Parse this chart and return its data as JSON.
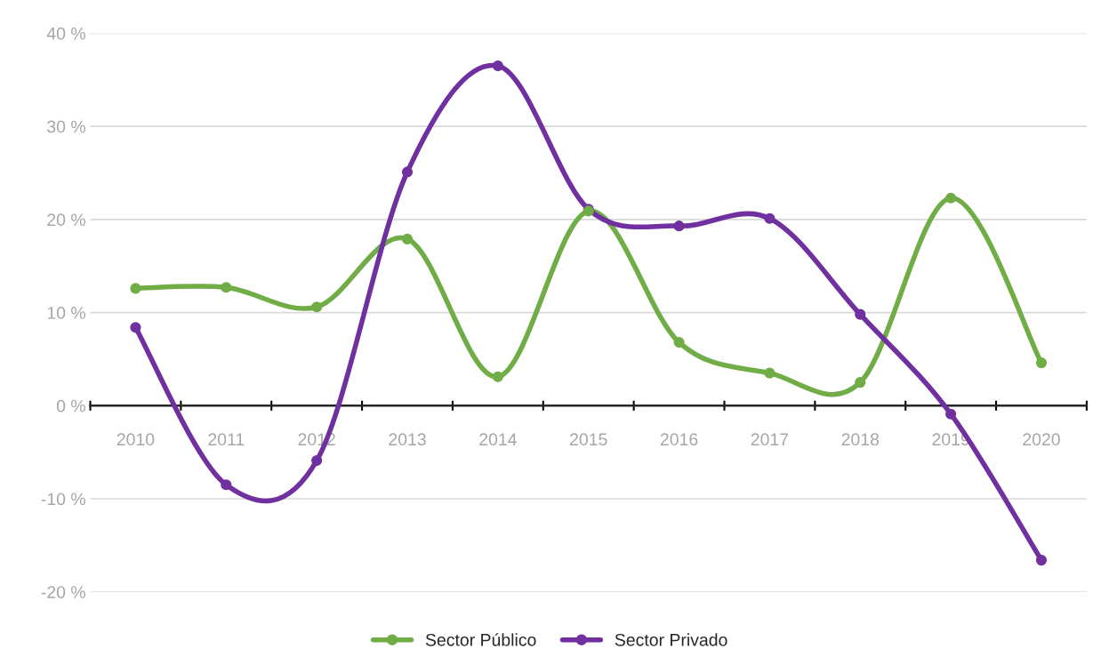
{
  "chart_data": {
    "type": "line",
    "categories": [
      "2010",
      "2011",
      "2012",
      "2013",
      "2014",
      "2015",
      "2016",
      "2017",
      "2018",
      "2019",
      "2020"
    ],
    "series": [
      {
        "name": "Sector Público",
        "color": "#70ad47",
        "values": [
          12.6,
          12.7,
          10.6,
          17.9,
          3.1,
          20.9,
          6.8,
          3.5,
          2.5,
          22.3,
          4.6
        ]
      },
      {
        "name": "Sector Privado",
        "color": "#7030a0",
        "values": [
          8.4,
          -8.5,
          -5.9,
          25.1,
          36.5,
          21.1,
          19.3,
          20.1,
          9.8,
          -0.9,
          -16.6
        ]
      }
    ],
    "ylim": [
      -20,
      40
    ],
    "yticks": [
      {
        "value": -20,
        "label": "-20 %"
      },
      {
        "value": -10,
        "label": "-10 %"
      },
      {
        "value": 0,
        "label": "0 %"
      },
      {
        "value": 10,
        "label": "10 %"
      },
      {
        "value": 20,
        "label": "20 %"
      },
      {
        "value": 30,
        "label": "30 %"
      },
      {
        "value": 40,
        "label": "40 %"
      }
    ],
    "grid": "y",
    "legend": "bottom",
    "marker": "circle",
    "line_style": "solid"
  }
}
